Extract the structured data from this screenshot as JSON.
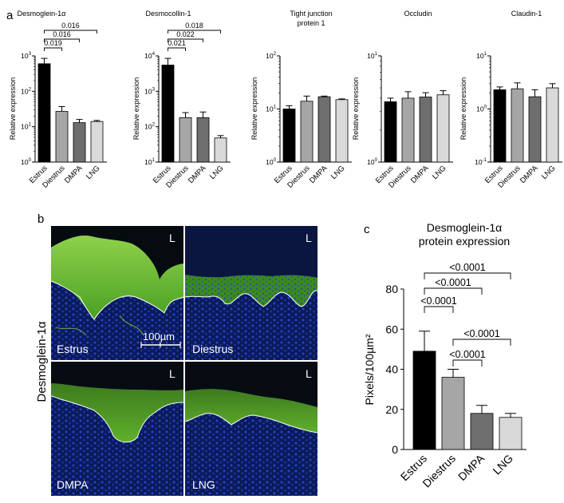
{
  "panels": {
    "a": "a",
    "b": "b",
    "c": "c"
  },
  "colors": {
    "estrus": "#000000",
    "diestrus": "#a6a6a6",
    "dmpa": "#6e6e6e",
    "lng": "#d9d9d9"
  },
  "chart_data": [
    {
      "id": "desmoglein",
      "type": "bar",
      "title": "Desmoglein-1α",
      "ylabel": "Relative expression",
      "yscale": "log",
      "ylim": [
        1,
        1000
      ],
      "yticks": [
        {
          "v": 1,
          "e": "0"
        },
        {
          "v": 10,
          "e": "1"
        },
        {
          "v": 100,
          "e": "2"
        },
        {
          "v": 1000,
          "e": "3"
        }
      ],
      "categories": [
        "Estrus",
        "Diestrus",
        "DMPA",
        "LNG"
      ],
      "values": [
        600,
        27,
        13,
        14
      ],
      "errors": [
        850,
        37,
        16,
        15
      ],
      "brackets": [
        {
          "from": 0,
          "to": 1,
          "label": "0.019"
        },
        {
          "from": 0,
          "to": 2,
          "label": "0.016"
        },
        {
          "from": 0,
          "to": 3,
          "label": "0.016"
        }
      ]
    },
    {
      "id": "desmocollin",
      "type": "bar",
      "title": "Desmocollin-1",
      "ylabel": "Relative expression",
      "yscale": "log",
      "ylim": [
        10,
        10000
      ],
      "yticks": [
        {
          "v": 10,
          "e": "1"
        },
        {
          "v": 100,
          "e": "2"
        },
        {
          "v": 1000,
          "e": "3"
        },
        {
          "v": 10000,
          "e": "4"
        }
      ],
      "categories": [
        "Estrus",
        "Diestrus",
        "DMPA",
        "LNG"
      ],
      "values": [
        5500,
        180,
        180,
        48
      ],
      "errors": [
        8500,
        250,
        260,
        56
      ],
      "brackets": [
        {
          "from": 0,
          "to": 1,
          "label": "0.021"
        },
        {
          "from": 0,
          "to": 2,
          "label": "0.022"
        },
        {
          "from": 0,
          "to": 3,
          "label": "0.018"
        }
      ]
    },
    {
      "id": "tjp1",
      "type": "bar",
      "title": "Tight junction\nprotein 1",
      "ylabel": "Relative expression",
      "yscale": "log",
      "ylim": [
        1,
        100
      ],
      "yticks": [
        {
          "v": 1,
          "e": "0"
        },
        {
          "v": 10,
          "e": "1"
        },
        {
          "v": 100,
          "e": "2"
        }
      ],
      "categories": [
        "Estrus",
        "Diestrus",
        "DMPA",
        "LNG"
      ],
      "values": [
        10,
        14,
        17,
        15
      ],
      "errors": [
        11.5,
        17.5,
        17.5,
        15.5
      ],
      "brackets": []
    },
    {
      "id": "occludin",
      "type": "bar",
      "title": "Occludin",
      "ylabel": "Relative expression",
      "yscale": "log",
      "ylim": [
        1,
        10
      ],
      "yticks": [
        {
          "v": 1,
          "e": "0"
        },
        {
          "v": 10,
          "e": "1"
        }
      ],
      "categories": [
        "Estrus",
        "Diestrus",
        "DMPA",
        "LNG"
      ],
      "values": [
        3.7,
        4.0,
        4.1,
        4.3
      ],
      "errors": [
        4.0,
        4.6,
        4.5,
        4.7
      ],
      "brackets": []
    },
    {
      "id": "claudin",
      "type": "bar",
      "title": "Claudin-1",
      "ylabel": "Relative expression",
      "yscale": "log",
      "ylim": [
        0.1,
        10
      ],
      "yticks": [
        {
          "v": 0.1,
          "e": "-1"
        },
        {
          "v": 1,
          "e": "0"
        },
        {
          "v": 10,
          "e": "1"
        }
      ],
      "categories": [
        "Estrus",
        "Diestrus",
        "DMPA",
        "LNG"
      ],
      "values": [
        2.3,
        2.4,
        1.7,
        2.5
      ],
      "errors": [
        2.6,
        3.1,
        2.3,
        3.0
      ],
      "brackets": []
    },
    {
      "id": "protein",
      "type": "bar",
      "title": "Desmoglein-1α\nprotein expression",
      "ylabel": "Pixels/100µm²",
      "yscale": "linear",
      "ylim": [
        0,
        80
      ],
      "yticks": [
        {
          "v": 0,
          "t": "0"
        },
        {
          "v": 20,
          "t": "20"
        },
        {
          "v": 40,
          "t": "40"
        },
        {
          "v": 60,
          "t": "60"
        },
        {
          "v": 80,
          "t": "80"
        }
      ],
      "categories": [
        "Estrus",
        "Diestrus",
        "DMPA",
        "LNG"
      ],
      "values": [
        49,
        36,
        18,
        16
      ],
      "errors": [
        59,
        40,
        22,
        18
      ],
      "brackets": [
        {
          "from": 0,
          "to": 1,
          "label": "<0.0001"
        },
        {
          "from": 0,
          "to": 2,
          "label": "<0.0001"
        },
        {
          "from": 0,
          "to": 3,
          "label": "<0.0001"
        },
        {
          "from": 1,
          "to": 2,
          "label": "<0.0001"
        },
        {
          "from": 1,
          "to": 3,
          "label": "<0.0001"
        }
      ]
    }
  ],
  "micrographs": {
    "row_label": "Desmoglein-1α",
    "lumen_label": "L",
    "scale_bar": "100µm",
    "tiles": [
      {
        "label": "Estrus"
      },
      {
        "label": "Diestrus"
      },
      {
        "label": "DMPA"
      },
      {
        "label": "LNG"
      }
    ]
  }
}
